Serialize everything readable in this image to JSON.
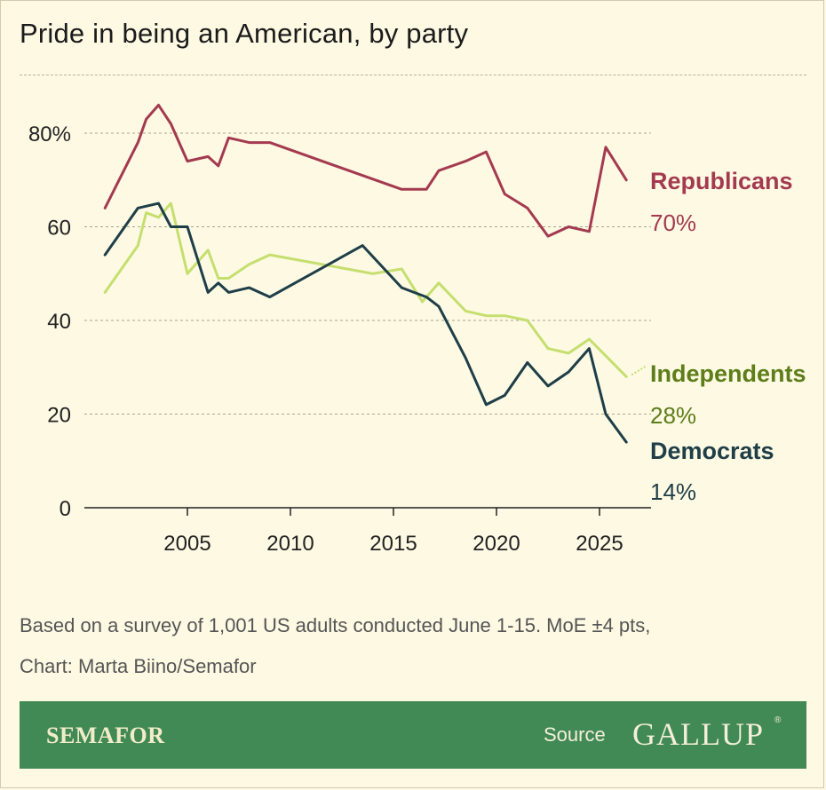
{
  "chart_data": {
    "type": "line",
    "title": "Pride in being an American, by party",
    "xlabel": "",
    "ylabel": "",
    "xlim": [
      2000,
      2027.5
    ],
    "ylim": [
      0,
      80
    ],
    "x_ticks": [
      2005,
      2010,
      2015,
      2020,
      2025
    ],
    "x_tick_labels": [
      "2005",
      "2010",
      "2015",
      "2020",
      "2025"
    ],
    "y_ticks": [
      0,
      20,
      40,
      60,
      80
    ],
    "y_tick_labels": [
      "0",
      "20",
      "40",
      "60",
      "80%"
    ],
    "grid": "horizontal-dashed",
    "legend": "direct labels at line ends",
    "series": [
      {
        "name": "Republicans",
        "end_label": "70%",
        "color": "#a43a50",
        "x": [
          2001,
          2002.6,
          2003,
          2003.6,
          2004.2,
          2005,
          2006,
          2006.5,
          2007,
          2008,
          2009,
          2015.4,
          2016.6,
          2017.2,
          2018.5,
          2019.5,
          2020.4,
          2021.5,
          2022.5,
          2023.5,
          2024.5,
          2025.3,
          2026.3
        ],
        "y": [
          64,
          78,
          83,
          86,
          82,
          74,
          75,
          73,
          79,
          78,
          78,
          68,
          68,
          72,
          74,
          76,
          67,
          64,
          58,
          60,
          59,
          77,
          70
        ]
      },
      {
        "name": "Independents",
        "end_label": "28%",
        "color": "#c5df6f",
        "label_color": "#5d7e1a",
        "x": [
          2001,
          2002.6,
          2003,
          2003.6,
          2004.2,
          2005,
          2006,
          2006.5,
          2007,
          2008,
          2009,
          2014,
          2015.4,
          2016.4,
          2017.2,
          2018.5,
          2019.5,
          2020.4,
          2021.5,
          2022.5,
          2023.5,
          2024.5,
          2026.3
        ],
        "y": [
          46,
          56,
          63,
          62,
          65,
          50,
          55,
          49,
          49,
          52,
          54,
          50,
          51,
          44,
          48,
          42,
          41,
          41,
          40,
          34,
          33,
          36,
          28
        ]
      },
      {
        "name": "Democrats",
        "end_label": "14%",
        "color": "#1e3e48",
        "x": [
          2001,
          2002.6,
          2003.6,
          2004.2,
          2005,
          2006,
          2006.5,
          2007,
          2008,
          2009,
          2013.5,
          2015.4,
          2016.6,
          2017.2,
          2018.5,
          2019.5,
          2020.4,
          2021.5,
          2022.5,
          2023.5,
          2024.5,
          2025.3,
          2026.3
        ],
        "y": [
          54,
          64,
          65,
          60,
          60,
          46,
          48,
          46,
          47,
          45,
          56,
          47,
          45,
          43,
          32,
          22,
          24,
          31,
          26,
          29,
          34,
          20,
          14
        ]
      }
    ]
  },
  "footnote_lines": [
    "Based on a survey of 1,001 US adults conducted June 1-15. MoE ±4 pts,",
    "Chart: Marta Biino/Semafor"
  ],
  "banner": {
    "brand": "SEMAFOR",
    "source_label": "Source",
    "source_name": "GALLUP",
    "source_mark": "®"
  }
}
